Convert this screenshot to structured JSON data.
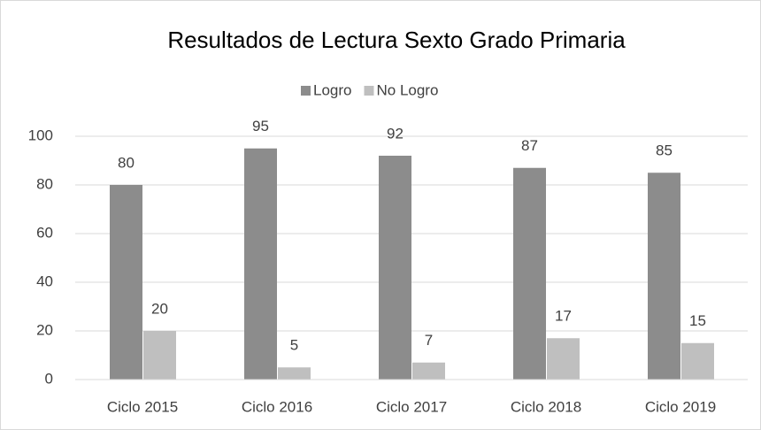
{
  "chart_data": {
    "type": "bar",
    "title": "Resultados de Lectura Sexto Grado Primaria",
    "categories": [
      "Ciclo 2015",
      "Ciclo 2016",
      "Ciclo 2017",
      "Ciclo 2018",
      "Ciclo 2019"
    ],
    "series": [
      {
        "name": "Logro",
        "color": "#8c8c8c",
        "values": [
          80,
          95,
          92,
          87,
          85
        ]
      },
      {
        "name": "No Logro",
        "color": "#bfbfbf",
        "values": [
          20,
          5,
          7,
          17,
          15
        ]
      }
    ],
    "ylim": [
      0,
      100
    ],
    "yticks": [
      0,
      20,
      40,
      60,
      80,
      100
    ],
    "grid": true,
    "legend": "top"
  }
}
